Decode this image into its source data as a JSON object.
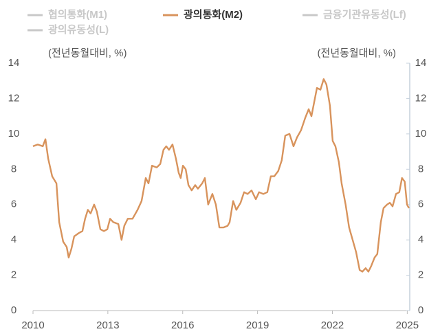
{
  "chart_data": {
    "type": "line",
    "y_label": "(전년동월대비, %)",
    "y2_label": "(전년동월대비, %)",
    "legend": [
      {
        "name": "협의통화(M1)",
        "color": "#c8c8c8",
        "active": false
      },
      {
        "name": "광의통화(M2)",
        "color": "#d8935c",
        "active": true
      },
      {
        "name": "금융기관유동성(Lf)",
        "color": "#c8c8c8",
        "active": false
      },
      {
        "name": "광의유동성(L)",
        "color": "#c8c8c8",
        "active": false
      }
    ],
    "x": [
      2010.0,
      2010.19,
      2010.39,
      2010.5,
      2010.61,
      2010.77,
      2010.94,
      2011.05,
      2011.21,
      2011.35,
      2011.43,
      2011.54,
      2011.65,
      2011.85,
      2011.98,
      2012.09,
      2012.2,
      2012.31,
      2012.45,
      2012.56,
      2012.7,
      2012.84,
      2012.98,
      2013.09,
      2013.22,
      2013.42,
      2013.55,
      2013.66,
      2013.8,
      2013.99,
      2014.19,
      2014.35,
      2014.52,
      2014.63,
      2014.77,
      2014.96,
      2015.1,
      2015.23,
      2015.34,
      2015.45,
      2015.59,
      2015.73,
      2015.84,
      2015.92,
      2016.01,
      2016.12,
      2016.23,
      2016.36,
      2016.5,
      2016.61,
      2016.78,
      2016.89,
      2017.02,
      2017.19,
      2017.33,
      2017.47,
      2017.63,
      2017.8,
      2017.88,
      2018.02,
      2018.15,
      2018.32,
      2018.46,
      2018.6,
      2018.76,
      2018.93,
      2019.06,
      2019.23,
      2019.39,
      2019.53,
      2019.67,
      2019.83,
      2019.97,
      2020.11,
      2020.28,
      2020.44,
      2020.58,
      2020.74,
      2020.91,
      2021.05,
      2021.16,
      2021.27,
      2021.38,
      2021.52,
      2021.65,
      2021.76,
      2021.9,
      2022.01,
      2022.12,
      2022.26,
      2022.37,
      2022.53,
      2022.67,
      2022.81,
      2022.95,
      2023.09,
      2023.2,
      2023.33,
      2023.44,
      2023.55,
      2023.69,
      2023.8,
      2023.94,
      2024.05,
      2024.19,
      2024.3,
      2024.41,
      2024.55,
      2024.68,
      2024.79,
      2024.9,
      2024.99,
      2025.07
    ],
    "series": [
      {
        "name": "광의통화(M2)",
        "color": "#d8935c",
        "values": [
          9.3,
          9.4,
          9.3,
          9.7,
          8.6,
          7.6,
          7.2,
          5.0,
          3.9,
          3.6,
          3.0,
          3.5,
          4.2,
          4.4,
          4.5,
          5.2,
          5.7,
          5.5,
          6.0,
          5.6,
          4.6,
          4.5,
          4.6,
          5.2,
          5.0,
          4.9,
          4.0,
          4.8,
          5.2,
          5.2,
          5.7,
          6.2,
          7.5,
          7.2,
          8.2,
          8.1,
          8.3,
          9.1,
          9.3,
          9.1,
          9.4,
          8.6,
          7.8,
          7.5,
          8.2,
          8.0,
          7.1,
          6.8,
          7.1,
          6.9,
          7.2,
          7.5,
          6.0,
          6.6,
          6.0,
          4.7,
          4.7,
          4.8,
          5.0,
          6.2,
          5.7,
          6.1,
          6.7,
          6.6,
          6.8,
          6.3,
          6.7,
          6.6,
          6.7,
          7.6,
          7.6,
          7.9,
          8.5,
          9.9,
          10.0,
          9.3,
          9.8,
          10.2,
          10.9,
          11.4,
          11.0,
          11.8,
          12.6,
          12.5,
          13.1,
          12.8,
          11.6,
          9.6,
          9.3,
          8.4,
          7.2,
          6.0,
          4.7,
          4.0,
          3.3,
          2.3,
          2.2,
          2.4,
          2.2,
          2.5,
          3.0,
          3.2,
          5.0,
          5.8,
          6.0,
          6.1,
          5.9,
          6.6,
          6.7,
          7.5,
          7.3,
          6.0,
          5.8
        ]
      }
    ],
    "xlim": [
      2010,
      2025.1
    ],
    "xticks": [
      2010,
      2013,
      2016,
      2019,
      2022,
      2025
    ],
    "ylim": [
      0,
      14
    ],
    "yticks": [
      0,
      2,
      4,
      6,
      8,
      10,
      12,
      14
    ],
    "y2lim": [
      0,
      14
    ],
    "y2ticks": [
      0,
      2,
      4,
      6,
      8,
      10,
      12,
      14
    ],
    "grid": false
  }
}
